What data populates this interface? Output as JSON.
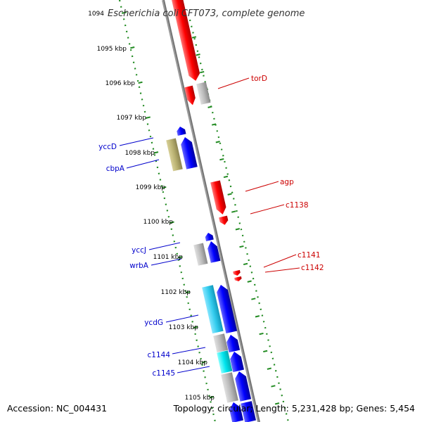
{
  "title": "Escherichia coli CFT073, complete genome",
  "accession": "Accession: NC_004431",
  "topology": "Topology: circular; Length: 5,231,428 bp; Genes: 5,454",
  "ruler": {
    "unit": "kbp",
    "ticks": [
      "1094",
      "1095 kbp",
      "1096 kbp",
      "1097 kbp",
      "1098 kbp",
      "1099 kbp",
      "1100 kbp",
      "1101 kbp",
      "1102 kbp",
      "1103 kbp",
      "1104 kbp",
      "1105 kbp"
    ]
  },
  "colors": {
    "forward": "#ff0000",
    "reverse": "#0000ff",
    "reverse_label": "#0000cc",
    "forward_label": "#cc0000",
    "hypothetical": "#bbbbbb",
    "olive": "#b8b070",
    "cyan": "#33ccee",
    "aqua": "#00e5ee",
    "ruler_dots": "#228b22",
    "backbone": "#888888"
  },
  "labels": {
    "forward": [
      "torD",
      "agp",
      "c1138",
      "c1141",
      "c1142"
    ],
    "reverse": [
      "yccD",
      "cbpA",
      "yccJ",
      "wrbA",
      "ycdG",
      "c1144",
      "c1145"
    ]
  }
}
